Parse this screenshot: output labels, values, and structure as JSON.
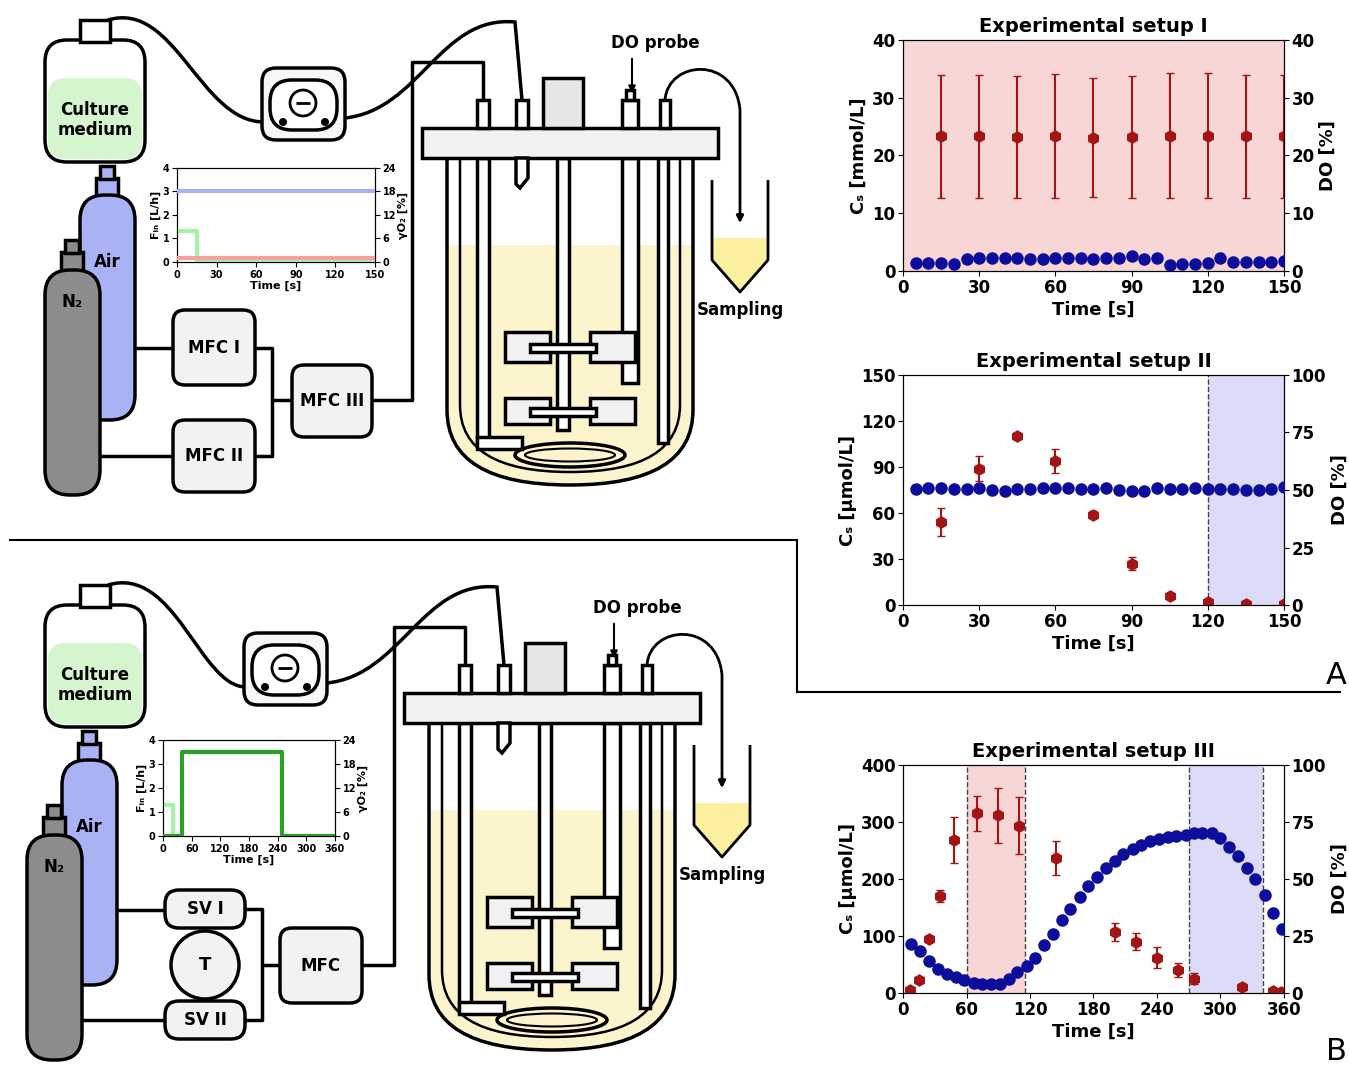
{
  "chart_data": [
    {
      "type": "line",
      "xlabel": "Time [s]",
      "ylabel": "Fᵢₙ [L/h]",
      "y2label": "γO₂ [%]",
      "xlim": [
        0,
        150
      ],
      "xticks": [
        0,
        30,
        60,
        90,
        120,
        150
      ],
      "ylim": [
        0,
        4
      ],
      "yticks": [
        0,
        1,
        2,
        3,
        4
      ],
      "y2lim": [
        0,
        24
      ],
      "y2ticks": [
        0,
        6,
        12,
        18,
        24
      ],
      "series": [
        {
          "color": "#a8f0a8",
          "axis": "y",
          "line_style": "solid",
          "x": [
            0,
            15,
            15,
            150
          ],
          "values": [
            1.3,
            1.3,
            0,
            0
          ]
        },
        {
          "color": "#f4a0a0",
          "axis": "y2",
          "line_style": "solid",
          "x": [
            0,
            150
          ],
          "values": [
            1,
            1
          ]
        },
        {
          "color": "#a9b2f5",
          "axis": "y2",
          "line_style": "solid",
          "x": [
            0,
            150
          ],
          "values": [
            18,
            18
          ]
        }
      ]
    },
    {
      "type": "line",
      "xlabel": "Time [s]",
      "ylabel": "Fᵢₙ [L/h]",
      "y2label": "γO₂ [%]",
      "xlim": [
        0,
        360
      ],
      "xticks": [
        0,
        60,
        120,
        180,
        240,
        300,
        360
      ],
      "ylim": [
        0,
        4
      ],
      "yticks": [
        0,
        1,
        2,
        3,
        4
      ],
      "y2lim": [
        0,
        24
      ],
      "y2ticks": [
        0,
        6,
        12,
        18,
        24
      ],
      "series": [
        {
          "color": "#a8f0a8",
          "axis": "y",
          "line_style": "solid",
          "x": [
            0,
            20,
            20
          ],
          "values": [
            1.3,
            1.3,
            0
          ]
        },
        {
          "color": "#2aa02a",
          "axis": "y2",
          "line_style": "solid",
          "x": [
            0,
            40,
            40,
            250,
            250,
            360
          ],
          "values": [
            0,
            0,
            21,
            21,
            0,
            0
          ]
        }
      ]
    },
    {
      "type": "scatter",
      "title": "Experimental setup I",
      "xlabel": "Time [s]",
      "ylabel": "Cₛ [mmol/L]",
      "y2label": "DO [%]",
      "xlim": [
        0,
        150
      ],
      "xticks": [
        0,
        30,
        60,
        90,
        120,
        150
      ],
      "ylim": [
        0,
        40
      ],
      "yticks": [
        0,
        10,
        20,
        30,
        40
      ],
      "y2lim": [
        0,
        40
      ],
      "y2ticks": [
        0,
        10,
        20,
        30,
        40
      ],
      "highlight_ranges": [
        {
          "x": [
            0,
            150
          ],
          "color": "#f9d6d6"
        }
      ],
      "series": [
        {
          "color": "#a31515",
          "marker": "hexagon",
          "axis": "y",
          "x": [
            15,
            30,
            45,
            60,
            75,
            90,
            105,
            120,
            135,
            150
          ],
          "values": [
            23.3,
            23.3,
            23.2,
            23.4,
            23.1,
            23.2,
            23.4,
            23.4,
            23.3,
            23.3
          ],
          "errors": [
            10.7,
            10.7,
            10.6,
            10.7,
            10.3,
            10.6,
            10.8,
            10.8,
            10.7,
            10.7
          ]
        },
        {
          "color": "#0d0d9c",
          "marker": "circle",
          "axis": "y2",
          "x": [
            5,
            10,
            15,
            20,
            25,
            30,
            35,
            40,
            45,
            50,
            55,
            60,
            65,
            70,
            75,
            80,
            85,
            90,
            95,
            100,
            105,
            110,
            115,
            120,
            125,
            130,
            135,
            140,
            145,
            150
          ],
          "values": [
            1.4,
            1.4,
            1.3,
            1.2,
            2.1,
            2.2,
            2.2,
            2.3,
            2.2,
            2.0,
            2.1,
            2.2,
            2.3,
            2.2,
            2.0,
            2.2,
            2.3,
            2.6,
            2.1,
            2.2,
            1.0,
            1.2,
            1.2,
            1.3,
            2.3,
            1.5,
            1.6,
            1.6,
            1.6,
            1.7
          ]
        }
      ]
    },
    {
      "type": "scatter",
      "title": "Experimental setup II",
      "xlabel": "Time [s]",
      "ylabel": "Cₛ [µmol/L]",
      "y2label": "DO [%]",
      "xlim": [
        0,
        150
      ],
      "xticks": [
        0,
        30,
        60,
        90,
        120,
        150
      ],
      "ylim": [
        0,
        150
      ],
      "yticks": [
        0,
        30,
        60,
        90,
        120,
        150
      ],
      "y2lim": [
        0,
        100
      ],
      "y2ticks": [
        0,
        25,
        50,
        75,
        100
      ],
      "highlight_ranges": [
        {
          "x": [
            120,
            150
          ],
          "color": "#dcdcf8"
        }
      ],
      "vlines": [
        120
      ],
      "series": [
        {
          "color": "#a31515",
          "marker": "hexagon",
          "axis": "y",
          "x": [
            15,
            30,
            45,
            60,
            75,
            90,
            105,
            120,
            135,
            150
          ],
          "values": [
            54,
            89,
            110,
            94,
            59,
            27,
            6,
            2,
            1,
            1
          ],
          "errors": [
            9,
            8,
            2,
            8,
            2,
            4,
            1,
            0.5,
            0.5,
            0.5
          ]
        },
        {
          "color": "#0d0d9c",
          "marker": "circle",
          "axis": "y2",
          "x": [
            5,
            10,
            15,
            20,
            25,
            30,
            35,
            40,
            45,
            50,
            55,
            60,
            65,
            70,
            75,
            80,
            85,
            90,
            95,
            100,
            105,
            110,
            115,
            120,
            125,
            130,
            135,
            140,
            145,
            150
          ],
          "values": [
            50.5,
            51,
            51,
            50.5,
            50.5,
            51,
            50,
            49.5,
            50.5,
            50.5,
            51,
            51,
            51,
            50.5,
            50.5,
            51,
            50,
            49.5,
            49.5,
            51,
            50.5,
            50.5,
            51,
            50.5,
            50.5,
            50.5,
            50,
            50,
            50.5,
            51.5
          ]
        }
      ]
    },
    {
      "type": "scatter",
      "title": "Experimental setup III",
      "xlabel": "Time [s]",
      "ylabel": "Cₛ [µmol/L]",
      "y2label": "DO [%]",
      "xlim": [
        0,
        360
      ],
      "xticks": [
        0,
        60,
        120,
        180,
        240,
        300,
        360
      ],
      "ylim": [
        0,
        400
      ],
      "yticks": [
        0,
        100,
        200,
        300,
        400
      ],
      "y2lim": [
        0,
        100
      ],
      "y2ticks": [
        0,
        25,
        50,
        75,
        100
      ],
      "highlight_ranges": [
        {
          "x": [
            60,
            115
          ],
          "color": "#f9d6d6"
        },
        {
          "x": [
            270,
            340
          ],
          "color": "#dcdcf8"
        }
      ],
      "vlines": [
        60,
        115,
        270,
        340
      ],
      "series": [
        {
          "color": "#a31515",
          "marker": "hexagon",
          "axis": "y",
          "x": [
            7,
            15,
            25,
            35,
            48,
            70,
            90,
            110,
            145,
            200,
            220,
            240,
            260,
            275,
            320,
            350,
            357
          ],
          "values": [
            5,
            22,
            95,
            170,
            268,
            315,
            312,
            293,
            237,
            107,
            90,
            62,
            40,
            25,
            10,
            3,
            2
          ],
          "errors": [
            0,
            3,
            5,
            10,
            40,
            30,
            48,
            50,
            30,
            15,
            15,
            18,
            12,
            10,
            5,
            0,
            0
          ]
        },
        {
          "color": "#0d0d9c",
          "marker": "circle",
          "axis": "y2",
          "x": [
            8,
            16,
            25,
            33,
            42,
            50,
            58,
            67,
            75,
            83,
            92,
            100,
            108,
            117,
            125,
            133,
            142,
            150,
            158,
            167,
            175,
            183,
            192,
            200,
            208,
            217,
            225,
            233,
            242,
            250,
            258,
            267,
            275,
            283,
            292,
            300,
            308,
            317,
            325,
            333,
            342,
            350,
            358
          ],
          "values": [
            21.5,
            18.5,
            14,
            10.5,
            8.5,
            7,
            5.5,
            4.5,
            4,
            4,
            4,
            6,
            9,
            12,
            15.5,
            21,
            26,
            32,
            37,
            42,
            47,
            51,
            55,
            58,
            61,
            63,
            65,
            66.5,
            67.5,
            68.5,
            69,
            69.5,
            70,
            70,
            70,
            68,
            64,
            60,
            55,
            50,
            43,
            35,
            28
          ]
        }
      ]
    }
  ],
  "diagrams": [
    {
      "label": "A",
      "medium": "Culture medium",
      "gas_1": "Air",
      "gas_2": "N₂",
      "controllers": [
        "MFC I",
        "MFC II",
        "MFC III"
      ],
      "probe": "DO probe",
      "sampling": "Sampling"
    },
    {
      "label": "B",
      "medium": "Culture medium",
      "gas_1": "Air",
      "gas_2": "N₂",
      "controllers": [
        "SV I",
        "T",
        "SV II",
        "MFC"
      ],
      "probe": "DO probe",
      "sampling": "Sampling"
    }
  ]
}
